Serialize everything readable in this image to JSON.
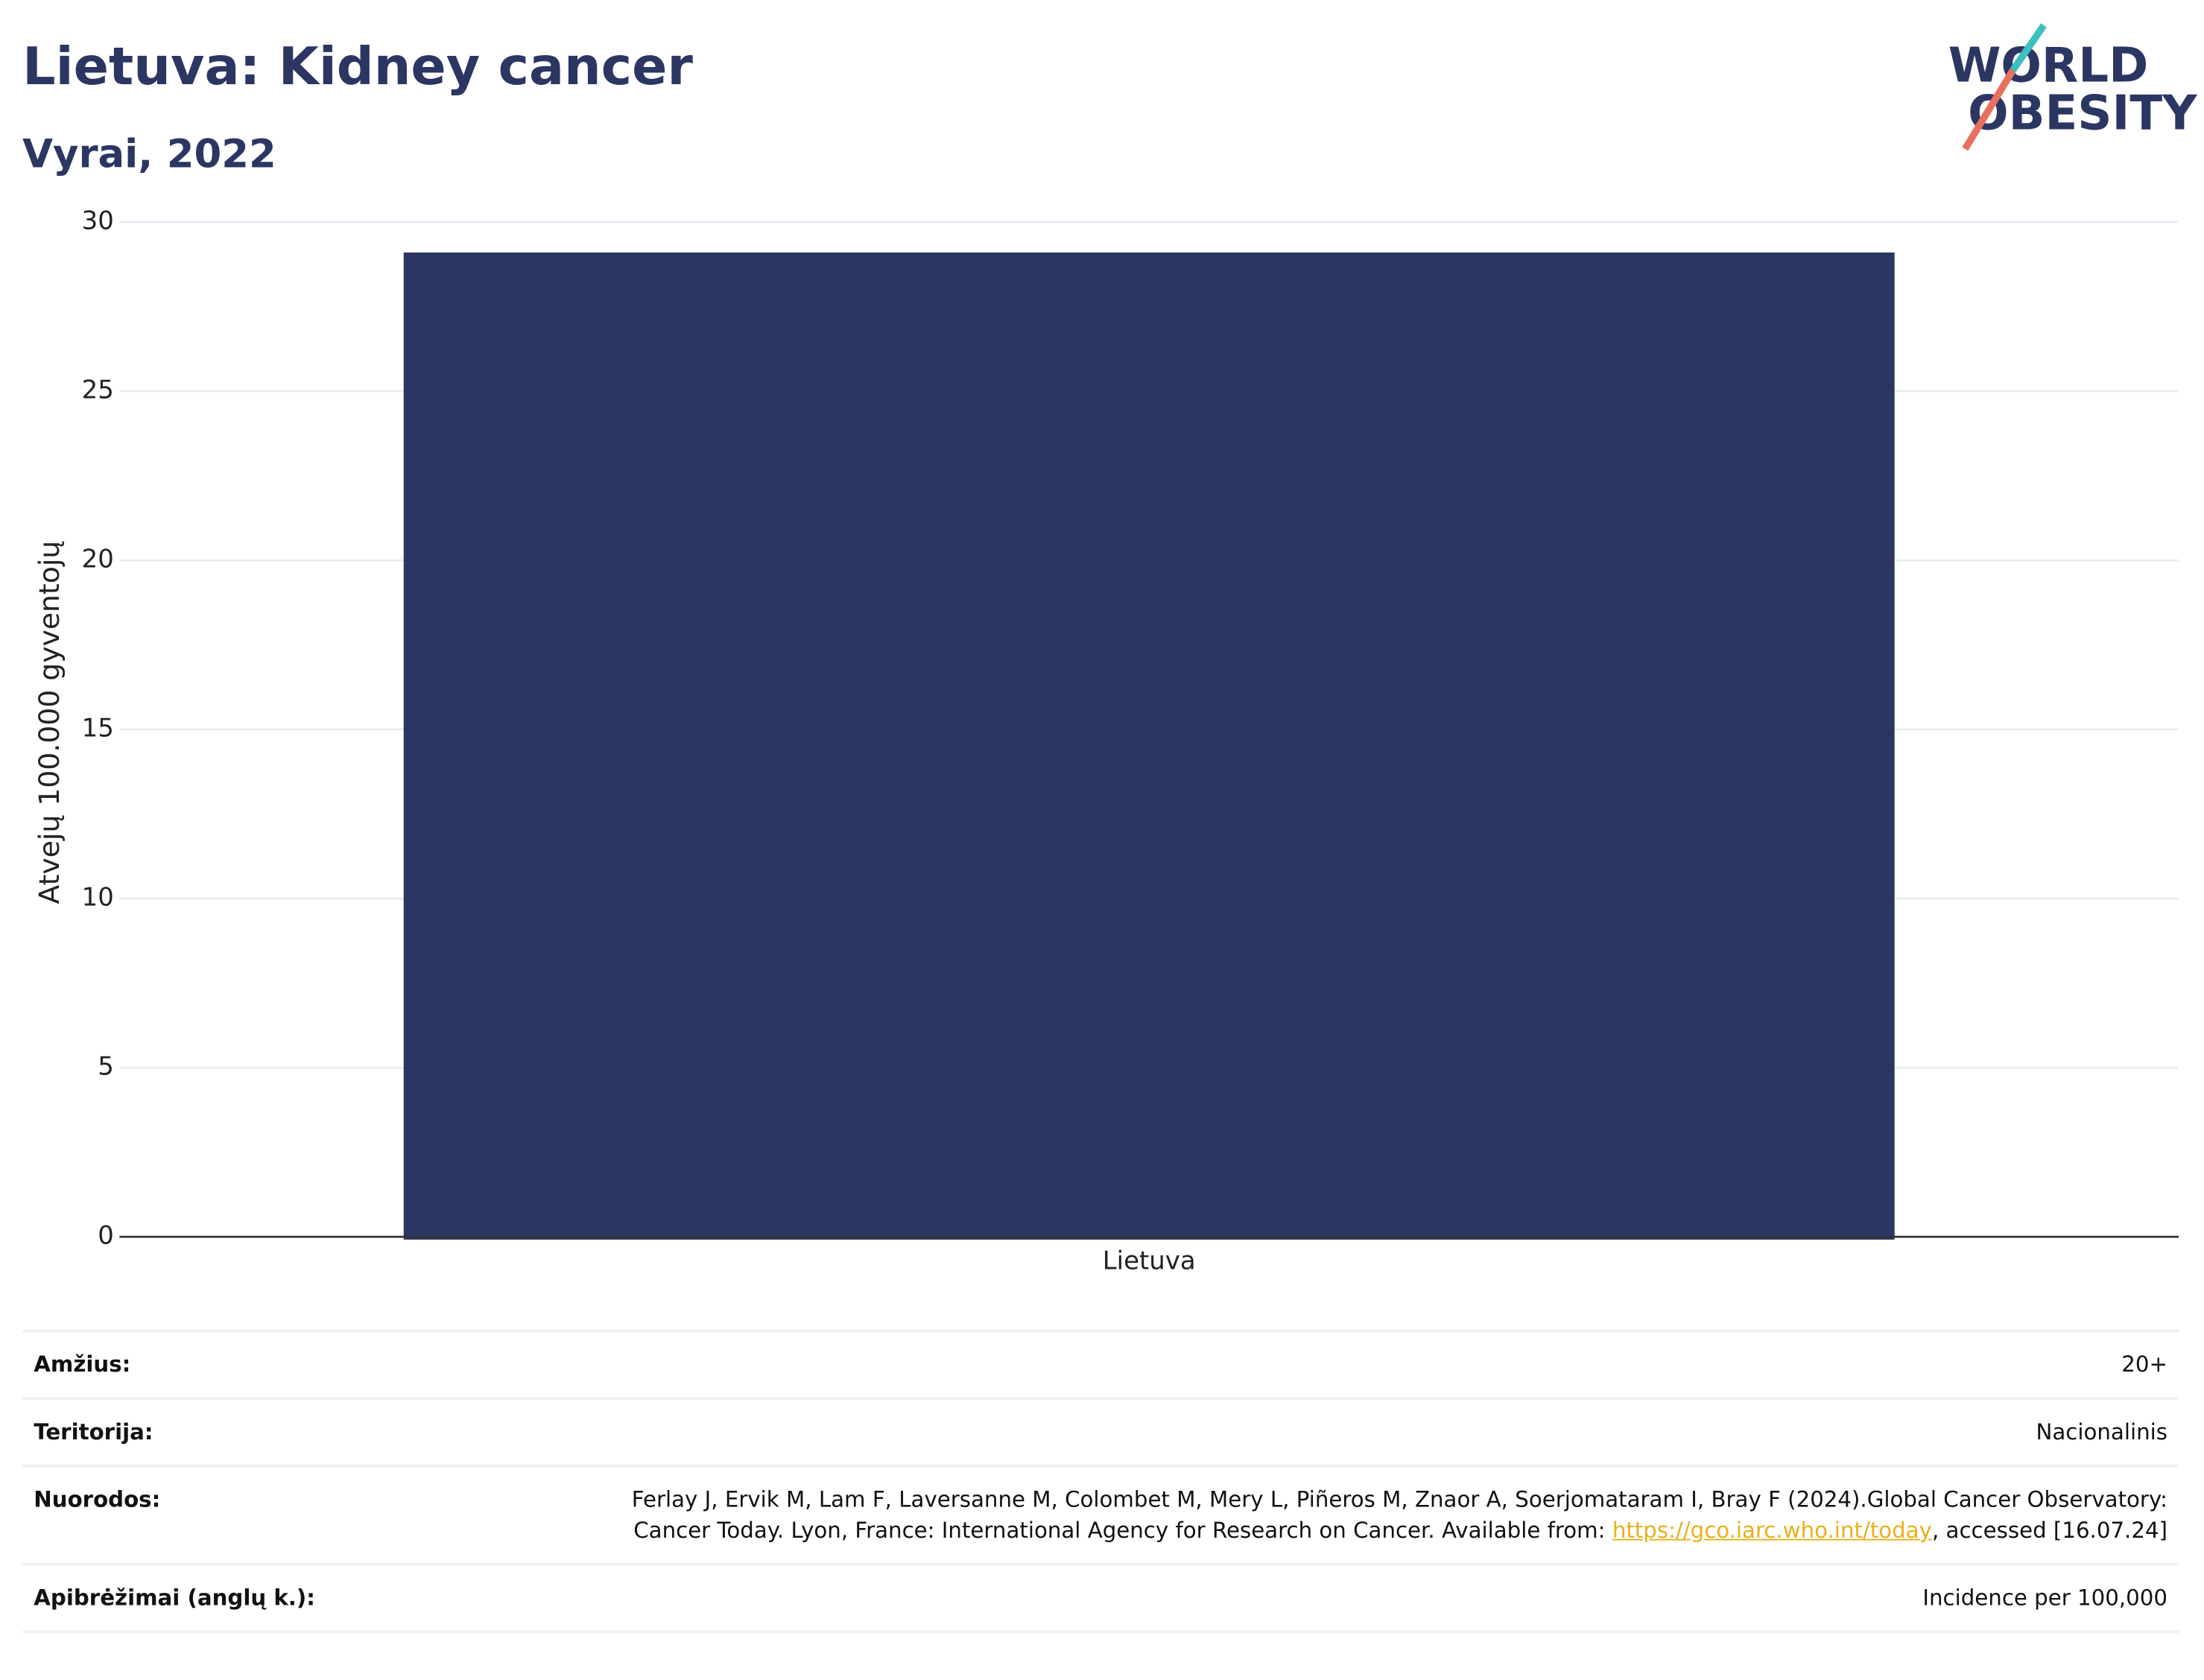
{
  "title": "Lietuva: Kidney cancer",
  "subtitle": "Vyrai, 2022",
  "logo": {
    "line1": "WORLD",
    "line2": "OBESITY"
  },
  "chart_data": {
    "type": "bar",
    "categories": [
      "Lietuva"
    ],
    "values": [
      29.1
    ],
    "color": "#2b3663",
    "ylim": [
      0,
      30
    ],
    "yticks": [
      0,
      5,
      10,
      15,
      20,
      25,
      30
    ],
    "y_label": "Atvejų 100.000 gyventojų",
    "grid": true
  },
  "table": {
    "rows": [
      {
        "label": "Amžius:",
        "value": "20+"
      },
      {
        "label": "Teritorija:",
        "value": "Nacionalinis"
      },
      {
        "label": "Nuorodos:",
        "value": "Ferlay J, Ervik M, Lam F, Laversanne M, Colombet M, Mery L, Piñeros M, Znaor A, Soerjomataram I, Bray F (2024).Global Cancer Observatory: Cancer Today. Lyon, France: International Agency for Research on Cancer. Available from: ",
        "link": "https://gco.iarc.who.int/today",
        "after": ", accessed [16.07.24]"
      },
      {
        "label": "Apibrėžimai (anglų k.):",
        "value": "Incidence per 100,000"
      }
    ]
  }
}
